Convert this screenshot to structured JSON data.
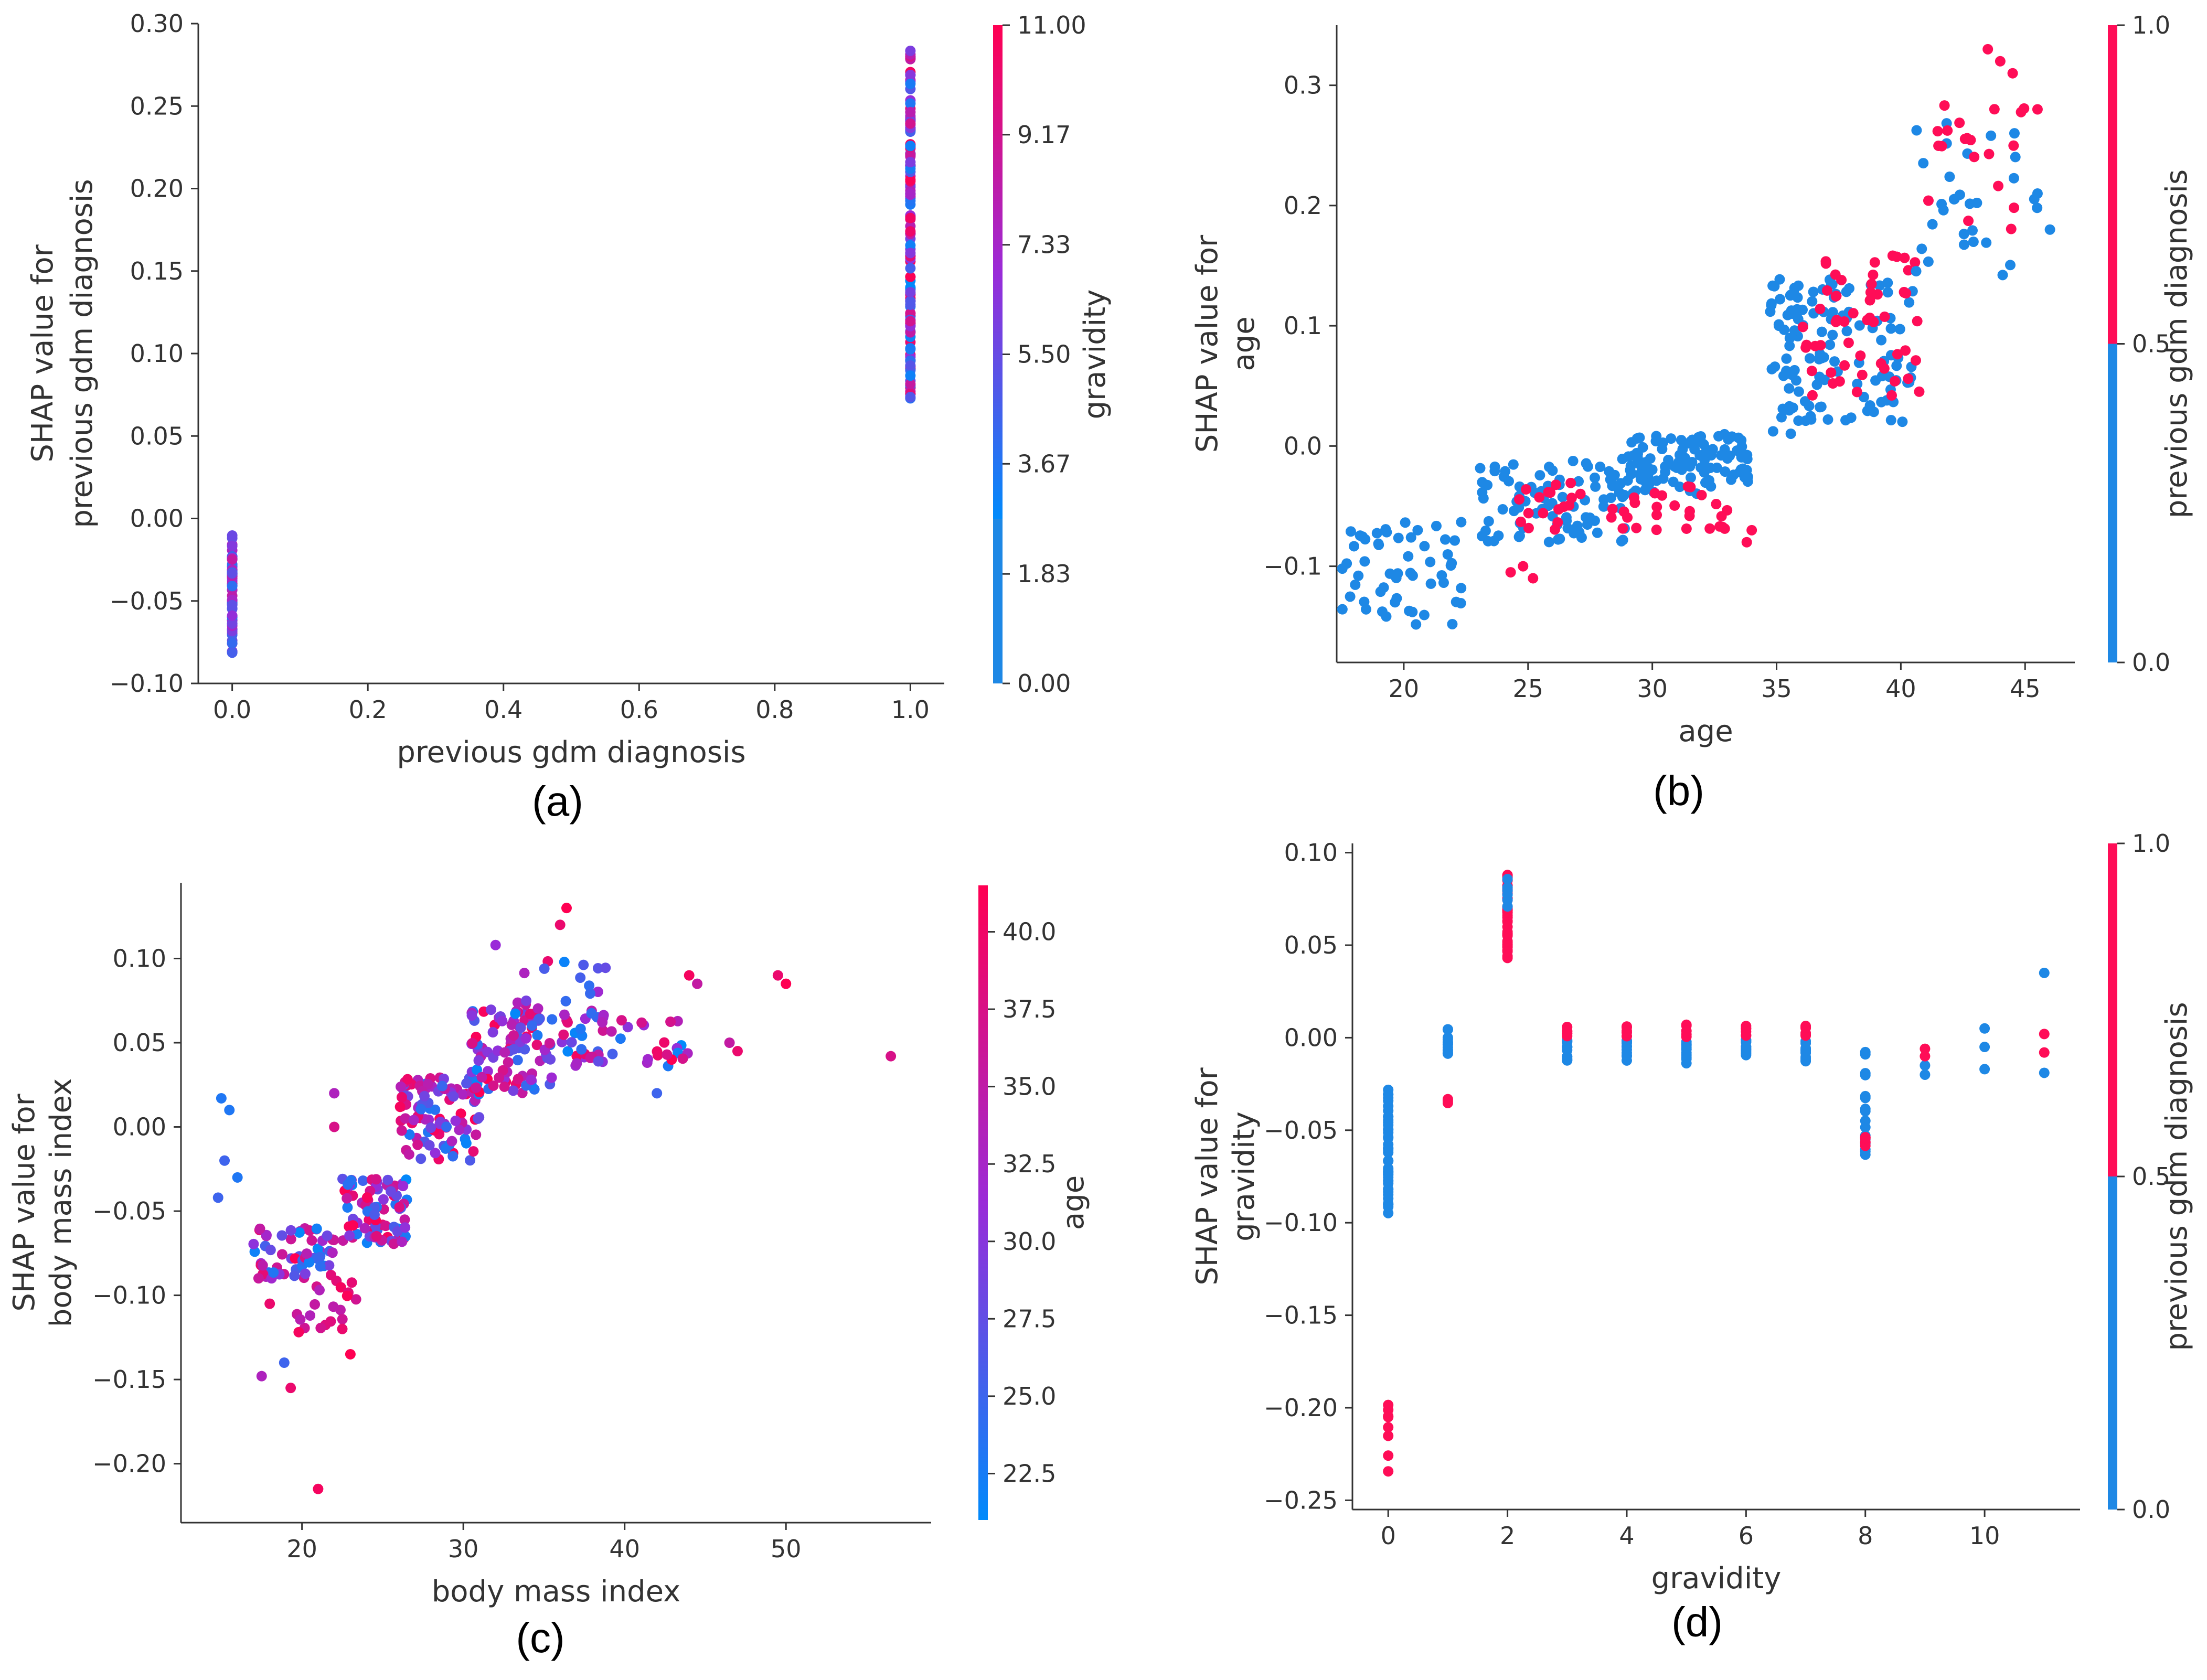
{
  "colors": {
    "low": "#1e88e5",
    "high": "#ff0d57",
    "axis": "#333333",
    "tick_text": "#333333"
  },
  "chart_data": [
    {
      "type": "scatter",
      "panel": "(a)",
      "xlabel": "previous gdm diagnosis",
      "ylabel_lines": [
        "SHAP value for",
        "previous gdm diagnosis"
      ],
      "xlim": [
        -0.05,
        1.05
      ],
      "ylim": [
        -0.1,
        0.3
      ],
      "xticks": [
        0.0,
        0.2,
        0.4,
        0.6,
        0.8,
        1.0
      ],
      "xtick_labels": [
        "0.0",
        "0.2",
        "0.4",
        "0.6",
        "0.8",
        "1.0"
      ],
      "yticks": [
        -0.1,
        -0.05,
        0.0,
        0.05,
        0.1,
        0.15,
        0.2,
        0.25,
        0.3
      ],
      "ytick_labels": [
        "−0.10",
        "−0.05",
        "0.00",
        "0.05",
        "0.10",
        "0.15",
        "0.20",
        "0.25",
        "0.30"
      ],
      "colorbar": {
        "label": "gravidity",
        "range": [
          0,
          11
        ],
        "ticks": [
          0,
          1.83,
          3.67,
          5.5,
          7.33,
          9.17,
          11
        ],
        "tick_labels": [
          "0.00",
          "1.83",
          "3.67",
          "5.50",
          "7.33",
          "9.17",
          "11.00"
        ],
        "step_at": 0.25
      },
      "clusters": [
        {
          "x": 0,
          "y_min": -0.082,
          "y_max": -0.01,
          "n": 70,
          "x_jitter": 0.0,
          "c_min": 0.0,
          "c_max": 0.7
        },
        {
          "x": 1,
          "y_min": 0.07,
          "y_max": 0.285,
          "n": 130,
          "x_jitter": 0.0,
          "c_min": 0.0,
          "c_max": 1.0
        }
      ],
      "points": []
    },
    {
      "type": "scatter",
      "panel": "(b)",
      "xlabel": "age",
      "ylabel_lines": [
        "SHAP value for",
        "age"
      ],
      "xlim": [
        17.3,
        47
      ],
      "ylim": [
        -0.18,
        0.35
      ],
      "xticks": [
        20,
        25,
        30,
        35,
        40,
        45
      ],
      "xtick_labels": [
        "20",
        "25",
        "30",
        "35",
        "40",
        "45"
      ],
      "yticks": [
        -0.1,
        0.0,
        0.1,
        0.2,
        0.3
      ],
      "ytick_labels": [
        "−0.1",
        "0.0",
        "0.1",
        "0.2",
        "0.3"
      ],
      "colorbar": {
        "label": "previous gdm diagnosis",
        "range": [
          0,
          1
        ],
        "ticks": [
          0,
          0.5,
          1
        ],
        "tick_labels": [
          "0.0",
          "0.5",
          "1.0"
        ],
        "step_at": 0.5
      },
      "clusters": [
        {
          "x": 20,
          "y_min": -0.15,
          "y_max": -0.06,
          "n": 55,
          "x_jitter": 2.5,
          "c_min": 0.0,
          "c_max": 0.0
        },
        {
          "x": 26,
          "y_min": -0.08,
          "y_max": -0.01,
          "n": 90,
          "x_jitter": 3.0,
          "c_min": 0.0,
          "c_max": 0.0
        },
        {
          "x": 31.5,
          "y_min": -0.04,
          "y_max": 0.01,
          "n": 110,
          "x_jitter": 2.5,
          "c_min": 0.0,
          "c_max": 0.0
        },
        {
          "x": 29,
          "y_min": -0.07,
          "y_max": -0.03,
          "n": 45,
          "x_jitter": 4.5,
          "c_min": 1.0,
          "c_max": 1.0
        },
        {
          "x": 35.3,
          "y_min": 0.01,
          "y_max": 0.14,
          "n": 35,
          "x_jitter": 0.6,
          "c_min": 0.0,
          "c_max": 0.0
        },
        {
          "x": 38,
          "y_min": 0.02,
          "y_max": 0.14,
          "n": 90,
          "x_jitter": 2.5,
          "c_min": 0.0,
          "c_max": 0.0
        },
        {
          "x": 38.5,
          "y_min": 0.04,
          "y_max": 0.16,
          "n": 55,
          "x_jitter": 2.5,
          "c_min": 1.0,
          "c_max": 1.0
        },
        {
          "x": 43,
          "y_min": 0.14,
          "y_max": 0.27,
          "n": 30,
          "x_jitter": 2.5,
          "c_min": 0.0,
          "c_max": 0.0
        },
        {
          "x": 43,
          "y_min": 0.17,
          "y_max": 0.3,
          "n": 20,
          "x_jitter": 2.0,
          "c_min": 1.0,
          "c_max": 1.0
        }
      ],
      "points": [
        [
          24.3,
          -0.105,
          1
        ],
        [
          24.8,
          -0.1,
          1
        ],
        [
          25.2,
          -0.11,
          1
        ],
        [
          33.8,
          -0.08,
          1
        ],
        [
          34.0,
          -0.07,
          1
        ],
        [
          44.0,
          0.32,
          1
        ],
        [
          44.5,
          0.31,
          1
        ],
        [
          43.5,
          0.33,
          1
        ],
        [
          45.5,
          0.28,
          1
        ],
        [
          46.0,
          0.18,
          0
        ],
        [
          45.5,
          0.21,
          0
        ]
      ]
    },
    {
      "type": "scatter",
      "panel": "(c)",
      "xlabel": "body mass index",
      "ylabel_lines": [
        "SHAP value for",
        "body mass index"
      ],
      "xlim": [
        12.5,
        59
      ],
      "ylim": [
        -0.235,
        0.145
      ],
      "xticks": [
        20,
        30,
        40,
        50
      ],
      "xtick_labels": [
        "20",
        "30",
        "40",
        "50"
      ],
      "yticks": [
        -0.2,
        -0.15,
        -0.1,
        -0.05,
        0.0,
        0.05,
        0.1
      ],
      "ytick_labels": [
        "−0.20",
        "−0.15",
        "−0.10",
        "−0.05",
        "0.00",
        "0.05",
        "0.10"
      ],
      "colorbar": {
        "label": "age",
        "range": [
          21,
          41.5
        ],
        "ticks": [
          22.5,
          25,
          27.5,
          30,
          32.5,
          35,
          37.5,
          40
        ],
        "tick_labels": [
          "22.5",
          "25.0",
          "27.5",
          "30.0",
          "32.5",
          "35.0",
          "37.5",
          "40.0"
        ],
        "step_at": -1
      },
      "clusters": [
        {
          "x": 19.5,
          "y_min": -0.09,
          "y_max": -0.06,
          "n": 60,
          "x_jitter": 2.5,
          "c_min": 0.0,
          "c_max": 1.0
        },
        {
          "x": 24.5,
          "y_min": -0.07,
          "y_max": -0.03,
          "n": 80,
          "x_jitter": 2.0,
          "c_min": 0.0,
          "c_max": 1.0
        },
        {
          "x": 28.5,
          "y_min": -0.02,
          "y_max": 0.03,
          "n": 100,
          "x_jitter": 2.5,
          "c_min": 0.0,
          "c_max": 1.0
        },
        {
          "x": 33,
          "y_min": 0.02,
          "y_max": 0.07,
          "n": 90,
          "x_jitter": 2.5,
          "c_min": 0.0,
          "c_max": 1.0
        },
        {
          "x": 40,
          "y_min": 0.035,
          "y_max": 0.065,
          "n": 45,
          "x_jitter": 4.0,
          "c_min": 0.0,
          "c_max": 1.0
        },
        {
          "x": 36,
          "y_min": 0.06,
          "y_max": 0.1,
          "n": 25,
          "x_jitter": 3.0,
          "c_min": 0.0,
          "c_max": 1.0
        },
        {
          "x": 21.5,
          "y_min": -0.13,
          "y_max": -0.09,
          "n": 20,
          "x_jitter": 2.0,
          "c_min": 0.6,
          "c_max": 1.0
        }
      ],
      "points": [
        [
          15.0,
          0.017,
          0.1
        ],
        [
          15.5,
          0.01,
          0.1
        ],
        [
          14.8,
          -0.042,
          0.2
        ],
        [
          15.2,
          -0.02,
          0.2
        ],
        [
          16.0,
          -0.03,
          0.1
        ],
        [
          21.0,
          -0.215,
          0.95
        ],
        [
          19.3,
          -0.155,
          0.9
        ],
        [
          18.9,
          -0.14,
          0.2
        ],
        [
          17.5,
          -0.148,
          0.6
        ],
        [
          18.0,
          -0.105,
          0.9
        ],
        [
          22.0,
          0.02,
          0.6
        ],
        [
          22.0,
          0.0,
          0.8
        ],
        [
          36.4,
          0.13,
          1.0
        ],
        [
          36.0,
          0.12,
          0.9
        ],
        [
          32.0,
          0.108,
          0.5
        ],
        [
          49.5,
          0.09,
          0.9
        ],
        [
          50.0,
          0.085,
          1.0
        ],
        [
          56.5,
          0.042,
          0.8
        ],
        [
          44.0,
          0.09,
          0.95
        ],
        [
          44.5,
          0.085,
          0.7
        ],
        [
          46.5,
          0.05,
          0.7
        ],
        [
          47.0,
          0.045,
          0.9
        ],
        [
          42.0,
          0.02,
          0.2
        ],
        [
          23.0,
          -0.135,
          1.0
        ],
        [
          22.5,
          -0.12,
          0.9
        ]
      ]
    },
    {
      "type": "scatter",
      "panel": "(d)",
      "xlabel": "gravidity",
      "ylabel_lines": [
        "SHAP value for",
        "gravidity"
      ],
      "xlim": [
        -0.6,
        11.6
      ],
      "ylim": [
        -0.255,
        0.105
      ],
      "xticks": [
        0,
        2,
        4,
        6,
        8,
        10
      ],
      "xtick_labels": [
        "0",
        "2",
        "4",
        "6",
        "8",
        "10"
      ],
      "yticks": [
        -0.25,
        -0.2,
        -0.15,
        -0.1,
        -0.05,
        0.0,
        0.05,
        0.1
      ],
      "ytick_labels": [
        "−0.25",
        "−0.20",
        "−0.15",
        "−0.10",
        "−0.05",
        "0.00",
        "0.05",
        "0.10"
      ],
      "colorbar": {
        "label": "previous gdm diagnosis",
        "range": [
          0,
          1
        ],
        "ticks": [
          0,
          0.5,
          1
        ],
        "tick_labels": [
          "0.0",
          "0.5",
          "1.0"
        ],
        "step_at": 0.5
      },
      "clusters": [
        {
          "x": 0,
          "y_min": -0.095,
          "y_max": -0.028,
          "n": 45,
          "x_jitter": 0,
          "c_min": 0,
          "c_max": 0
        },
        {
          "x": 0,
          "y_min": -0.24,
          "y_max": -0.188,
          "n": 8,
          "x_jitter": 0,
          "c_min": 1,
          "c_max": 1
        },
        {
          "x": 1,
          "y_min": -0.01,
          "y_max": 0.006,
          "n": 14,
          "x_jitter": 0,
          "c_min": 0,
          "c_max": 0
        },
        {
          "x": 1,
          "y_min": -0.038,
          "y_max": -0.033,
          "n": 3,
          "x_jitter": 0,
          "c_min": 1,
          "c_max": 1
        },
        {
          "x": 2,
          "y_min": 0.043,
          "y_max": 0.088,
          "n": 45,
          "x_jitter": 0,
          "c_min": 1,
          "c_max": 1
        },
        {
          "x": 2,
          "y_min": 0.07,
          "y_max": 0.088,
          "n": 6,
          "x_jitter": 0,
          "c_min": 0,
          "c_max": 0
        },
        {
          "x": 3,
          "y_min": -0.013,
          "y_max": -0.001,
          "n": 12,
          "x_jitter": 0,
          "c_min": 0,
          "c_max": 0
        },
        {
          "x": 3,
          "y_min": 0.0,
          "y_max": 0.007,
          "n": 6,
          "x_jitter": 0,
          "c_min": 1,
          "c_max": 1
        },
        {
          "x": 4,
          "y_min": -0.013,
          "y_max": -0.001,
          "n": 12,
          "x_jitter": 0,
          "c_min": 0,
          "c_max": 0
        },
        {
          "x": 4,
          "y_min": 0.0,
          "y_max": 0.007,
          "n": 6,
          "x_jitter": 0,
          "c_min": 1,
          "c_max": 1
        },
        {
          "x": 5,
          "y_min": -0.015,
          "y_max": -0.001,
          "n": 12,
          "x_jitter": 0,
          "c_min": 0,
          "c_max": 0
        },
        {
          "x": 5,
          "y_min": 0.0,
          "y_max": 0.007,
          "n": 6,
          "x_jitter": 0,
          "c_min": 1,
          "c_max": 1
        },
        {
          "x": 6,
          "y_min": -0.013,
          "y_max": -0.001,
          "n": 12,
          "x_jitter": 0,
          "c_min": 0,
          "c_max": 0
        },
        {
          "x": 6,
          "y_min": 0.0,
          "y_max": 0.007,
          "n": 6,
          "x_jitter": 0,
          "c_min": 1,
          "c_max": 1
        },
        {
          "x": 7,
          "y_min": -0.013,
          "y_max": -0.001,
          "n": 12,
          "x_jitter": 0,
          "c_min": 0,
          "c_max": 0
        },
        {
          "x": 7,
          "y_min": 0.0,
          "y_max": 0.007,
          "n": 6,
          "x_jitter": 0,
          "c_min": 1,
          "c_max": 1
        },
        {
          "x": 8,
          "y_min": -0.064,
          "y_max": -0.005,
          "n": 16,
          "x_jitter": 0,
          "c_min": 0,
          "c_max": 0
        },
        {
          "x": 8,
          "y_min": -0.06,
          "y_max": -0.043,
          "n": 6,
          "x_jitter": 0,
          "c_min": 1,
          "c_max": 1
        }
      ],
      "points": [
        [
          9,
          -0.02,
          0
        ],
        [
          9,
          -0.015,
          0
        ],
        [
          9,
          -0.01,
          1
        ],
        [
          9,
          -0.006,
          1
        ],
        [
          10,
          0.005,
          0
        ],
        [
          10,
          -0.005,
          0
        ],
        [
          10,
          -0.017,
          0
        ],
        [
          11,
          0.035,
          0
        ],
        [
          11,
          0.002,
          1
        ],
        [
          11,
          -0.008,
          1
        ],
        [
          11,
          -0.019,
          0
        ]
      ]
    }
  ]
}
